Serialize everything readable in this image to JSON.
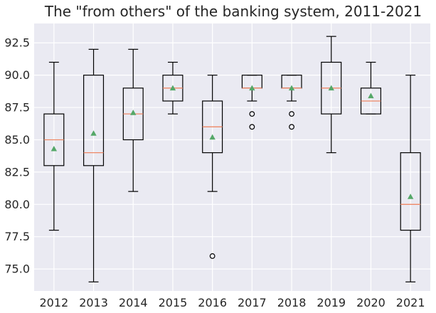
{
  "chart_data": {
    "type": "box",
    "title": "The \"from others\" of the banking system, 2011-2021",
    "xlabel": "",
    "ylabel": "",
    "ylim": [
      73.3,
      94.0
    ],
    "yticks": [
      75.0,
      77.5,
      80.0,
      82.5,
      85.0,
      87.5,
      90.0,
      92.5
    ],
    "ytick_labels": [
      "75.0",
      "77.5",
      "80.0",
      "82.5",
      "85.0",
      "87.5",
      "90.0",
      "92.5"
    ],
    "categories": [
      "2012",
      "2013",
      "2014",
      "2015",
      "2016",
      "2017",
      "2018",
      "2019",
      "2020",
      "2021"
    ],
    "grid": true,
    "colors": {
      "background": "#eaeaf2",
      "grid": "#ffffff",
      "box": "#000000",
      "median": "#ee8866",
      "mean": "#55a868"
    },
    "boxes": [
      {
        "whislo": 78,
        "q1": 83,
        "med": 85,
        "q3": 87,
        "whishi": 91,
        "mean": 84.3,
        "fliers": []
      },
      {
        "whislo": 74,
        "q1": 83,
        "med": 84,
        "q3": 90,
        "whishi": 92,
        "mean": 85.5,
        "fliers": []
      },
      {
        "whislo": 81,
        "q1": 85,
        "med": 87,
        "q3": 89,
        "whishi": 92,
        "mean": 87.1,
        "fliers": []
      },
      {
        "whislo": 87,
        "q1": 88,
        "med": 89,
        "q3": 90,
        "whishi": 91,
        "mean": 89.0,
        "fliers": []
      },
      {
        "whislo": 81,
        "q1": 84,
        "med": 86,
        "q3": 88,
        "whishi": 90,
        "mean": 85.2,
        "fliers": [
          76
        ]
      },
      {
        "whislo": 88,
        "q1": 89,
        "med": 89,
        "q3": 90,
        "whishi": 90,
        "mean": 89.0,
        "fliers": [
          87,
          86
        ]
      },
      {
        "whislo": 88,
        "q1": 89,
        "med": 89,
        "q3": 90,
        "whishi": 90,
        "mean": 89.0,
        "fliers": [
          87,
          86
        ]
      },
      {
        "whislo": 84,
        "q1": 87,
        "med": 89,
        "q3": 91,
        "whishi": 93,
        "mean": 89.0,
        "fliers": []
      },
      {
        "whislo": 87,
        "q1": 87,
        "med": 88,
        "q3": 89,
        "whishi": 91,
        "mean": 88.4,
        "fliers": []
      },
      {
        "whislo": 74,
        "q1": 78,
        "med": 80,
        "q3": 84,
        "whishi": 90,
        "mean": 80.6,
        "fliers": []
      }
    ]
  }
}
